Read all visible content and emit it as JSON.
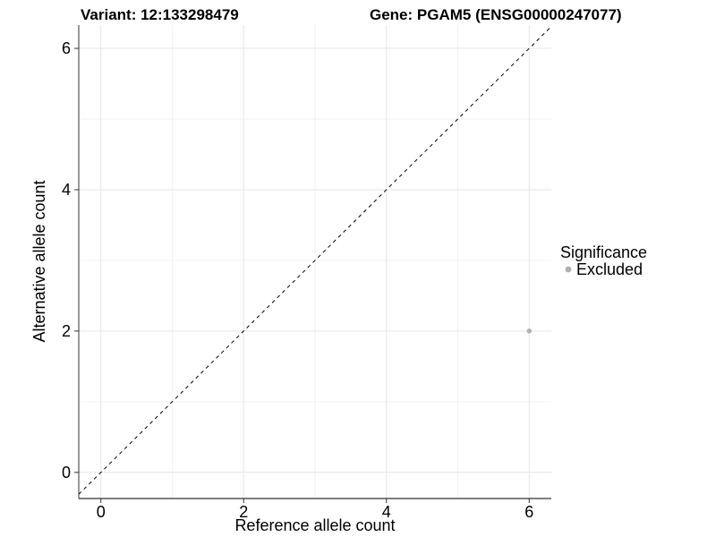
{
  "chart_data": {
    "type": "scatter",
    "title_left": "Variant: 12:133298479",
    "title_right": "Gene: PGAM5 (ENSG00000247077)",
    "xlabel": "Reference allele count",
    "ylabel": "Alternative allele count",
    "xlim": [
      -0.31,
      6.31
    ],
    "ylim": [
      -0.37,
      6.33
    ],
    "x_ticks": [
      "0",
      "2",
      "4",
      "6"
    ],
    "x_tick_values": [
      0,
      2,
      4,
      6
    ],
    "y_ticks": [
      "0",
      "2",
      "4",
      "6"
    ],
    "y_tick_values": [
      0,
      2,
      4,
      6
    ],
    "x_minor_ticks": [
      1,
      3,
      5
    ],
    "y_minor_ticks": [
      1,
      3,
      5
    ],
    "grid": true,
    "points": [
      {
        "x": 6,
        "y": 2,
        "significance": "Excluded"
      }
    ],
    "identity_line": {
      "slope": 1,
      "intercept": 0,
      "style": "dashed"
    },
    "legend": {
      "position": "right",
      "title": "Significance",
      "entries": [
        {
          "label": "Excluded",
          "color": "#b0b0b0",
          "marker": "circle"
        }
      ]
    }
  },
  "colors": {
    "point": "#b0b0b0",
    "grid_major": "#e6e6e6",
    "grid_minor": "#f2f2f2",
    "axis_line": "#333333",
    "tick_mark": "#333333",
    "identity_line": "#000000",
    "text": "#000000",
    "background": "#ffffff"
  }
}
